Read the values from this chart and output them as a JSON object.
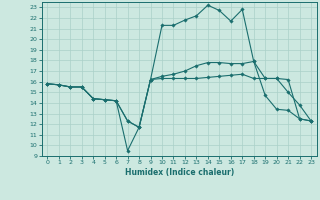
{
  "xlabel": "Humidex (Indice chaleur)",
  "bg_color": "#cce8e0",
  "grid_color": "#aad0c8",
  "line_color": "#1a6e6e",
  "xlim": [
    -0.5,
    23.5
  ],
  "ylim": [
    9,
    23.5
  ],
  "yticks": [
    9,
    10,
    11,
    12,
    13,
    14,
    15,
    16,
    17,
    18,
    19,
    20,
    21,
    22,
    23
  ],
  "xticks": [
    0,
    1,
    2,
    3,
    4,
    5,
    6,
    7,
    8,
    9,
    10,
    11,
    12,
    13,
    14,
    15,
    16,
    17,
    18,
    19,
    20,
    21,
    22,
    23
  ],
  "line1_x": [
    0,
    1,
    2,
    3,
    4,
    5,
    6,
    7,
    8,
    9,
    10,
    11,
    12,
    13,
    14,
    15,
    16,
    17,
    18,
    19,
    20,
    21,
    22,
    23
  ],
  "line1_y": [
    15.8,
    15.7,
    15.5,
    15.5,
    14.4,
    14.3,
    14.2,
    12.3,
    11.7,
    16.2,
    16.3,
    16.3,
    16.3,
    16.3,
    16.4,
    16.5,
    16.6,
    16.7,
    16.3,
    16.3,
    16.3,
    16.2,
    12.5,
    12.3
  ],
  "line2_x": [
    0,
    1,
    2,
    3,
    4,
    5,
    6,
    7,
    8,
    9,
    10,
    11,
    12,
    13,
    14,
    15,
    16,
    17,
    18,
    19,
    20,
    21,
    22,
    23
  ],
  "line2_y": [
    15.8,
    15.7,
    15.5,
    15.5,
    14.4,
    14.3,
    14.2,
    9.5,
    11.7,
    16.2,
    21.3,
    21.3,
    21.8,
    22.2,
    23.2,
    22.7,
    21.7,
    22.8,
    17.9,
    14.7,
    13.4,
    13.3,
    12.5,
    12.3
  ],
  "line3_x": [
    0,
    1,
    2,
    3,
    4,
    5,
    6,
    7,
    8,
    9,
    10,
    11,
    12,
    13,
    14,
    15,
    16,
    17,
    18,
    19,
    20,
    21,
    22,
    23
  ],
  "line3_y": [
    15.8,
    15.7,
    15.5,
    15.5,
    14.4,
    14.3,
    14.2,
    12.3,
    11.7,
    16.2,
    16.5,
    16.7,
    17.0,
    17.5,
    17.8,
    17.8,
    17.7,
    17.7,
    17.9,
    16.3,
    16.3,
    15.0,
    13.8,
    12.3
  ]
}
